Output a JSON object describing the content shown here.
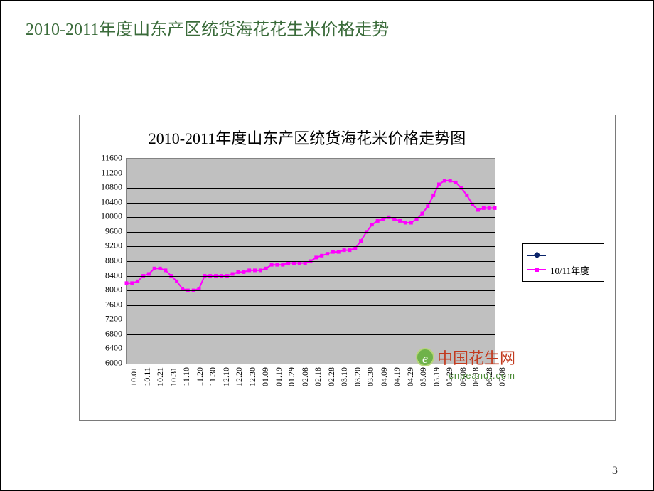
{
  "page": {
    "heading": "2010-2011年度山东产区统货海花花生米价格走势",
    "number": "3"
  },
  "watermark": {
    "text": "中国花生网",
    "sub": "cnpeanut.com"
  },
  "chart": {
    "type": "line",
    "title": "2010-2011年度山东产区统货海花米价格走势图",
    "title_fontsize": 22,
    "background_color": "#c0c0c0",
    "border_color": "#838383",
    "grid_color": "#000000",
    "ylim": [
      6000,
      11600
    ],
    "ytick_step": 400,
    "yticks": [
      6000,
      6400,
      6800,
      7200,
      7600,
      8000,
      8400,
      8800,
      9200,
      9600,
      10000,
      10400,
      10800,
      11200,
      11600
    ],
    "xlabels": [
      "10.01",
      "10.11",
      "10.21",
      "10.31",
      "11.10",
      "11.20",
      "11.30",
      "12.10",
      "12.20",
      "12.30",
      "01.09",
      "01.19",
      "01.29",
      "02.08",
      "02.18",
      "02.28",
      "03.10",
      "03.20",
      "03.30",
      "04.09",
      "04.19",
      "04.29",
      "05.09",
      "05.19",
      "05.29",
      "06.08",
      "06.18",
      "06.28",
      "07.08"
    ],
    "series_color": "#ff00ff",
    "series_line_width": 2,
    "marker_size": 5,
    "marker_style": "square",
    "label_fontsize": 12,
    "values": [
      8200,
      8200,
      8250,
      8400,
      8450,
      8600,
      8600,
      8550,
      8400,
      8250,
      8050,
      8000,
      8000,
      8050,
      8400,
      8400,
      8400,
      8400,
      8400,
      8450,
      8500,
      8500,
      8550,
      8550,
      8550,
      8600,
      8700,
      8700,
      8700,
      8750,
      8750,
      8750,
      8750,
      8800,
      8900,
      8950,
      9000,
      9050,
      9050,
      9100,
      9100,
      9150,
      9350,
      9600,
      9800,
      9900,
      9950,
      10000,
      9950,
      9900,
      9850,
      9850,
      9950,
      10100,
      10300,
      10600,
      10900,
      11000,
      11000,
      10950,
      10800,
      10600,
      10350,
      10200,
      10250,
      10250,
      10250
    ],
    "legend": {
      "position": "right",
      "items": [
        {
          "label": "",
          "color": "#0a246a",
          "marker": "diamond"
        },
        {
          "label": "10/11年度",
          "color": "#ff00ff",
          "marker": "square"
        }
      ]
    }
  }
}
